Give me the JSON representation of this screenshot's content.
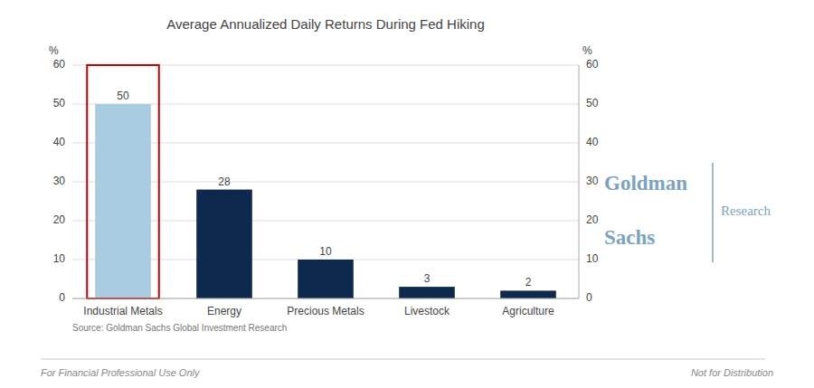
{
  "chart_data": {
    "type": "bar",
    "title": "Average Annualized Daily Returns During Fed Hiking",
    "categories": [
      "Industrial Metals",
      "Energy",
      "Precious Metals",
      "Livestock",
      "Agriculture"
    ],
    "values": [
      50,
      28,
      10,
      3,
      2
    ],
    "colors": [
      "#a8cce0",
      "#0d2a4e",
      "#0d2a4e",
      "#0d2a4e",
      "#0d2a4e"
    ],
    "ylim": [
      0,
      60
    ],
    "yticks": [
      0,
      10,
      20,
      30,
      40,
      50,
      60
    ],
    "y2lim": [
      0,
      60
    ],
    "y2ticks": [
      0,
      10,
      20,
      30,
      40,
      50,
      60
    ],
    "ylabel": "%",
    "y2label": "%",
    "grid": true,
    "data_labels": true,
    "annotations": [
      "Source: Goldman Sachs Global Investment Research",
      "For Financial Professional Use Only",
      "Not for Distribution",
      "Goldman",
      "Sachs",
      "Research"
    ]
  }
}
